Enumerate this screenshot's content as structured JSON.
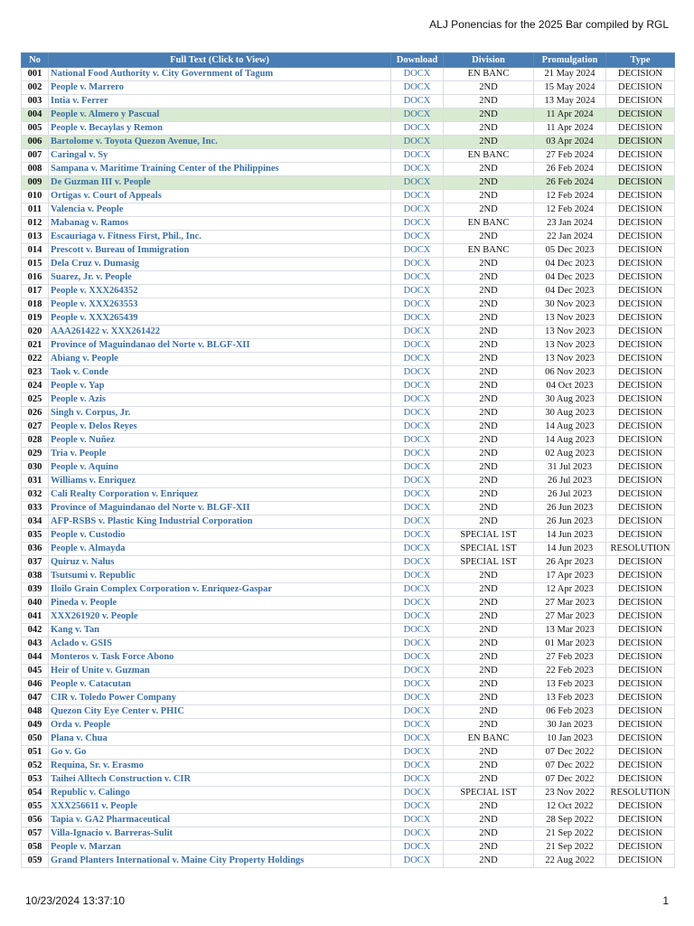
{
  "header": {
    "title": "ALJ Ponencias for the 2025 Bar compiled by RGL"
  },
  "table": {
    "columns": [
      "No",
      "Full Text (Click to View)",
      "Download",
      "Division",
      "Promulgation",
      "Type"
    ],
    "highlight_rows": [
      3,
      5,
      8
    ],
    "highlight_color": "#d9ead3",
    "rows": [
      [
        "001",
        "National Food Authority v. City Government of Tagum",
        "DOCX",
        "EN BANC",
        "21 May 2024",
        "DECISION"
      ],
      [
        "002",
        "People v. Marrero",
        "DOCX",
        "2ND",
        "15 May 2024",
        "DECISION"
      ],
      [
        "003",
        "Intia v. Ferrer",
        "DOCX",
        "2ND",
        "13 May 2024",
        "DECISION"
      ],
      [
        "004",
        "People v. Almero y Pascual",
        "DOCX",
        "2ND",
        "11 Apr 2024",
        "DECISION"
      ],
      [
        "005",
        "People v. Becaylas y Remon",
        "DOCX",
        "2ND",
        "11 Apr 2024",
        "DECISION"
      ],
      [
        "006",
        "Bartolome v. Toyota Quezon Avenue, Inc.",
        "DOCX",
        "2ND",
        "03 Apr 2024",
        "DECISION"
      ],
      [
        "007",
        "Caringal v. Sy",
        "DOCX",
        "EN BANC",
        "27 Feb 2024",
        "DECISION"
      ],
      [
        "008",
        "Sampana v. Maritime Training Center of the Philippines",
        "DOCX",
        "2ND",
        "26 Feb 2024",
        "DECISION"
      ],
      [
        "009",
        "De Guzman III v. People",
        "DOCX",
        "2ND",
        "26 Feb 2024",
        "DECISION"
      ],
      [
        "010",
        "Ortigas v. Court of Appeals",
        "DOCX",
        "2ND",
        "12 Feb 2024",
        "DECISION"
      ],
      [
        "011",
        "Valencia v. People",
        "DOCX",
        "2ND",
        "12 Feb 2024",
        "DECISION"
      ],
      [
        "012",
        "Mabanag v. Ramos",
        "DOCX",
        "EN BANC",
        "23 Jan 2024",
        "DECISION"
      ],
      [
        "013",
        "Escauriaga v. Fitness First, Phil., Inc.",
        "DOCX",
        "2ND",
        "22 Jan 2024",
        "DECISION"
      ],
      [
        "014",
        "Prescott v. Bureau of Immigration",
        "DOCX",
        "EN BANC",
        "05 Dec 2023",
        "DECISION"
      ],
      [
        "015",
        "Dela Cruz v. Dumasig",
        "DOCX",
        "2ND",
        "04 Dec 2023",
        "DECISION"
      ],
      [
        "016",
        "Suarez, Jr. v. People",
        "DOCX",
        "2ND",
        "04 Dec 2023",
        "DECISION"
      ],
      [
        "017",
        "People v. XXX264352",
        "DOCX",
        "2ND",
        "04 Dec 2023",
        "DECISION"
      ],
      [
        "018",
        "People v. XXX263553",
        "DOCX",
        "2ND",
        "30 Nov 2023",
        "DECISION"
      ],
      [
        "019",
        "People v. XXX265439",
        "DOCX",
        "2ND",
        "13 Nov 2023",
        "DECISION"
      ],
      [
        "020",
        "AAA261422 v. XXX261422",
        "DOCX",
        "2ND",
        "13 Nov 2023",
        "DECISION"
      ],
      [
        "021",
        "Province of Maguindanao del Norte v. BLGF-XII",
        "DOCX",
        "2ND",
        "13 Nov 2023",
        "DECISION"
      ],
      [
        "022",
        "Abiang v. People",
        "DOCX",
        "2ND",
        "13 Nov 2023",
        "DECISION"
      ],
      [
        "023",
        "Taok v. Conde",
        "DOCX",
        "2ND",
        "06 Nov 2023",
        "DECISION"
      ],
      [
        "024",
        "People v. Yap",
        "DOCX",
        "2ND",
        "04 Oct 2023",
        "DECISION"
      ],
      [
        "025",
        "People v. Azis",
        "DOCX",
        "2ND",
        "30 Aug 2023",
        "DECISION"
      ],
      [
        "026",
        "Singh v. Corpus, Jr.",
        "DOCX",
        "2ND",
        "30 Aug 2023",
        "DECISION"
      ],
      [
        "027",
        "People v. Delos Reyes",
        "DOCX",
        "2ND",
        "14 Aug 2023",
        "DECISION"
      ],
      [
        "028",
        "People v. Nuñez",
        "DOCX",
        "2ND",
        "14 Aug 2023",
        "DECISION"
      ],
      [
        "029",
        "Tria v. People",
        "DOCX",
        "2ND",
        "02 Aug 2023",
        "DECISION"
      ],
      [
        "030",
        "People v. Aquino",
        "DOCX",
        "2ND",
        "31 Jul 2023",
        "DECISION"
      ],
      [
        "031",
        "Williams v. Enriquez",
        "DOCX",
        "2ND",
        "26 Jul 2023",
        "DECISION"
      ],
      [
        "032",
        "Cali Realty Corporation v. Enriquez",
        "DOCX",
        "2ND",
        "26 Jul 2023",
        "DECISION"
      ],
      [
        "033",
        "Province of Maguindanao del Norte v. BLGF-XII",
        "DOCX",
        "2ND",
        "26 Jun 2023",
        "DECISION"
      ],
      [
        "034",
        "AFP-RSBS v. Plastic King Industrial Corporation",
        "DOCX",
        "2ND",
        "26 Jun 2023",
        "DECISION"
      ],
      [
        "035",
        "People v. Custodio",
        "DOCX",
        "SPECIAL 1ST",
        "14 Jun 2023",
        "DECISION"
      ],
      [
        "036",
        "People v. Almayda",
        "DOCX",
        "SPECIAL 1ST",
        "14 Jun 2023",
        "RESOLUTION"
      ],
      [
        "037",
        "Quiruz v. Nalus",
        "DOCX",
        "SPECIAL 1ST",
        "26 Apr 2023",
        "DECISION"
      ],
      [
        "038",
        "Tsutsumi v. Republic",
        "DOCX",
        "2ND",
        "17 Apr 2023",
        "DECISION"
      ],
      [
        "039",
        "Iloilo Grain Complex Corporation v. Enriquez-Gaspar",
        "DOCX",
        "2ND",
        "12 Apr 2023",
        "DECISION"
      ],
      [
        "040",
        "Pineda v. People",
        "DOCX",
        "2ND",
        "27 Mar 2023",
        "DECISION"
      ],
      [
        "041",
        "XXX261920 v. People",
        "DOCX",
        "2ND",
        "27 Mar 2023",
        "DECISION"
      ],
      [
        "042",
        "Kang v. Tan",
        "DOCX",
        "2ND",
        "13 Mar 2023",
        "DECISION"
      ],
      [
        "043",
        "Aclado v. GSIS",
        "DOCX",
        "2ND",
        "01 Mar 2023",
        "DECISION"
      ],
      [
        "044",
        "Monteros v. Task Force Abono",
        "DOCX",
        "2ND",
        "27 Feb 2023",
        "DECISION"
      ],
      [
        "045",
        "Heir of Unite v. Guzman",
        "DOCX",
        "2ND",
        "22 Feb 2023",
        "DECISION"
      ],
      [
        "046",
        "People v. Catacutan",
        "DOCX",
        "2ND",
        "13 Feb 2023",
        "DECISION"
      ],
      [
        "047",
        "CIR v. Toledo Power Company",
        "DOCX",
        "2ND",
        "13 Feb 2023",
        "DECISION"
      ],
      [
        "048",
        "Quezon City Eye Center v. PHIC",
        "DOCX",
        "2ND",
        "06 Feb 2023",
        "DECISION"
      ],
      [
        "049",
        "Orda v. People",
        "DOCX",
        "2ND",
        "30 Jan 2023",
        "DECISION"
      ],
      [
        "050",
        "Plana v. Chua",
        "DOCX",
        "EN BANC",
        "10 Jan 2023",
        "DECISION"
      ],
      [
        "051",
        "Go v. Go",
        "DOCX",
        "2ND",
        "07 Dec 2022",
        "DECISION"
      ],
      [
        "052",
        "Requina, Sr. v. Erasmo",
        "DOCX",
        "2ND",
        "07 Dec 2022",
        "DECISION"
      ],
      [
        "053",
        "Taihei Alltech Construction v. CIR",
        "DOCX",
        "2ND",
        "07 Dec 2022",
        "DECISION"
      ],
      [
        "054",
        "Republic v. Calingo",
        "DOCX",
        "SPECIAL 1ST",
        "23 Nov 2022",
        "RESOLUTION"
      ],
      [
        "055",
        "XXX256611 v. People",
        "DOCX",
        "2ND",
        "12 Oct 2022",
        "DECISION"
      ],
      [
        "056",
        "Tapia v. GA2 Pharmaceutical",
        "DOCX",
        "2ND",
        "28 Sep 2022",
        "DECISION"
      ],
      [
        "057",
        "Villa-Ignacio v. Barreras-Sulit",
        "DOCX",
        "2ND",
        "21 Sep 2022",
        "DECISION"
      ],
      [
        "058",
        "People v. Marzan",
        "DOCX",
        "2ND",
        "21 Sep 2022",
        "DECISION"
      ],
      [
        "059",
        "Grand Planters International v. Maine City Property Holdings",
        "DOCX",
        "2ND",
        "22 Aug 2022",
        "DECISION"
      ]
    ]
  },
  "footer": {
    "timestamp": "10/23/2024 13:37:10",
    "page": "1"
  }
}
